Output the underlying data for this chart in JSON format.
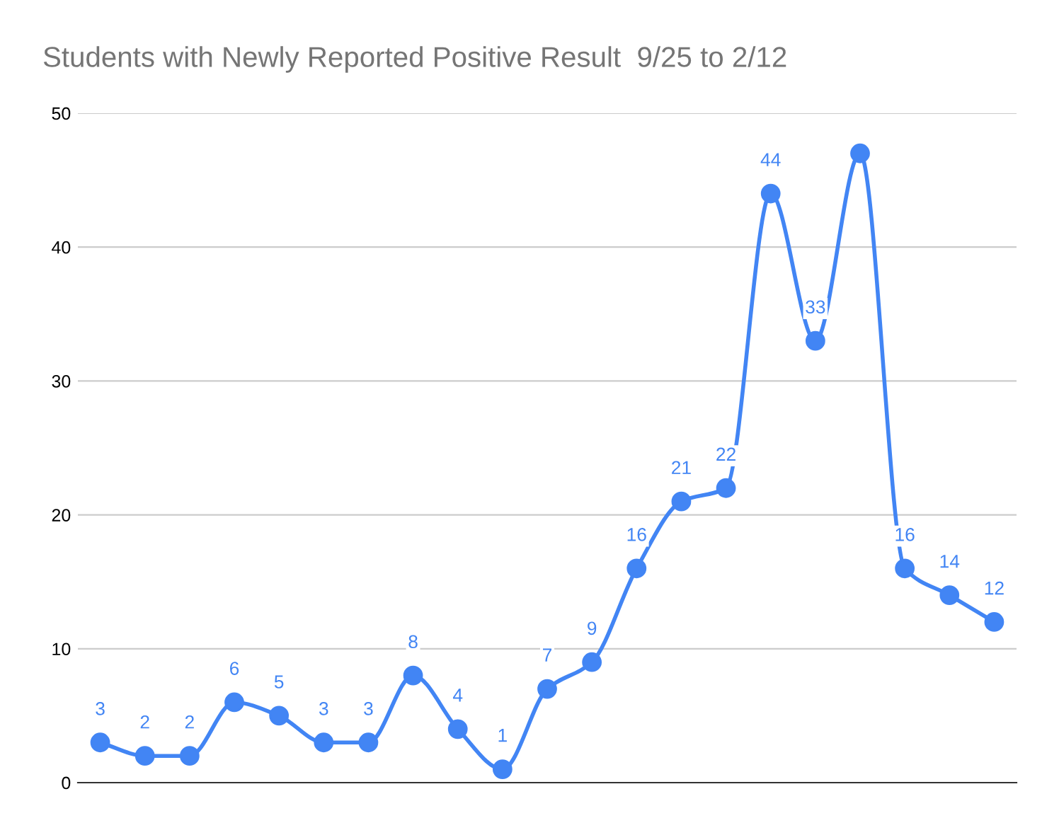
{
  "chart_data": {
    "type": "line",
    "title": "Students with Newly Reported Positive Result  9/25 to 2/12",
    "categories": [
      null,
      null,
      null,
      null,
      null,
      null,
      null,
      null,
      null,
      null,
      null,
      null,
      null,
      null,
      null,
      null,
      null,
      null,
      null,
      null,
      null
    ],
    "series": [
      {
        "color": "#4285f4",
        "values": [
          3,
          2,
          2,
          6,
          5,
          3,
          3,
          8,
          4,
          1,
          7,
          9,
          16,
          21,
          22,
          44,
          33,
          47,
          16,
          14,
          12
        ],
        "value_labels": [
          "3",
          "2",
          "2",
          "6",
          "5",
          "3",
          "3",
          "8",
          "4",
          "1",
          "7",
          "9",
          "16",
          "21",
          "22",
          "44",
          "33",
          null,
          "16",
          "14",
          "12"
        ]
      }
    ],
    "ylim": [
      0,
      50
    ],
    "yticks": [
      0,
      10,
      20,
      30,
      40,
      50
    ],
    "grid": "y",
    "legend": false,
    "marker": "circle",
    "line_style": "solid"
  }
}
